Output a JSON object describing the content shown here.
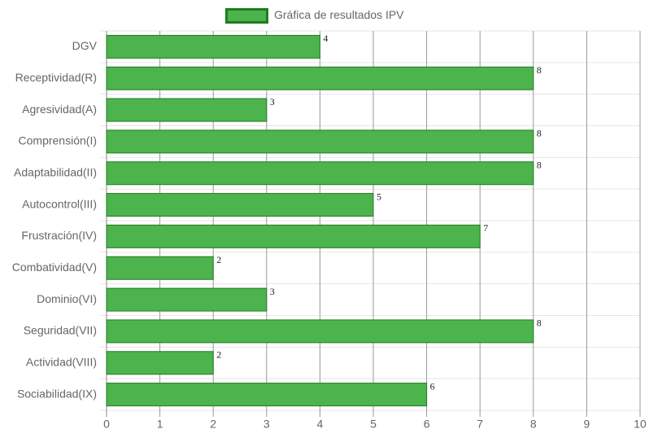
{
  "chart_data": {
    "type": "bar",
    "orientation": "horizontal",
    "categories": [
      "DGV",
      "Receptividad(R)",
      "Agresividad(A)",
      "Comprensión(I)",
      "Adaptabilidad(II)",
      "Autocontrol(III)",
      "Frustración(IV)",
      "Combatividad(V)",
      "Dominio(VI)",
      "Seguridad(VII)",
      "Actividad(VIII)",
      "Sociabilidad(IX)"
    ],
    "series": [
      {
        "name": "Gráfica de resultados IPV",
        "color": "#4db34d",
        "border_color": "#1e7d1e",
        "values": [
          4,
          8,
          3,
          8,
          8,
          5,
          7,
          2,
          3,
          8,
          2,
          6
        ]
      }
    ],
    "xlim": [
      0,
      10
    ],
    "xticks": [
      0,
      1,
      2,
      3,
      4,
      5,
      6,
      7,
      8,
      9,
      10
    ],
    "grid": true,
    "legend": "top"
  }
}
